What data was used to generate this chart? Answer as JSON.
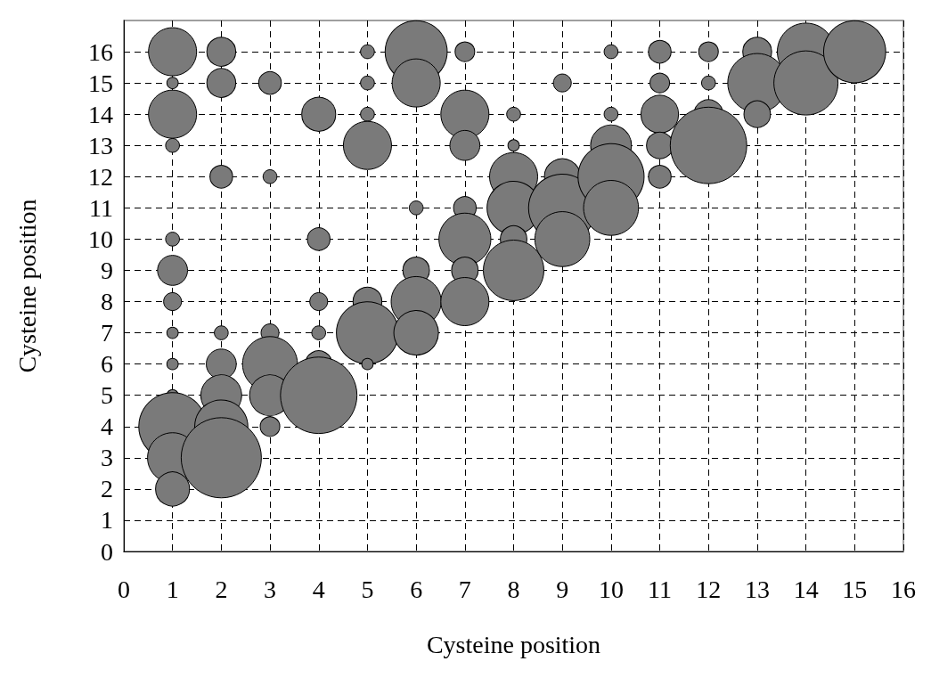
{
  "chart_data": {
    "type": "bubble",
    "xlabel": "Cysteine position",
    "ylabel": "Cysteine position",
    "xlim": [
      0,
      16
    ],
    "xticks": [
      0,
      1,
      2,
      3,
      4,
      5,
      6,
      7,
      8,
      9,
      10,
      11,
      12,
      13,
      14,
      15,
      16
    ],
    "ylim": [
      0,
      17
    ],
    "yticks": [
      0,
      1,
      2,
      3,
      4,
      5,
      6,
      7,
      8,
      9,
      10,
      11,
      12,
      13,
      14,
      15,
      16
    ],
    "grid": true,
    "line_style": "dashed",
    "series": [
      {
        "color": "#7a7a7a",
        "x": [
          1,
          1,
          1,
          1,
          1,
          1,
          1,
          1,
          1,
          1,
          1,
          1,
          1,
          2,
          2,
          2,
          2,
          2,
          2,
          2,
          2,
          3,
          3,
          3,
          3,
          3,
          3,
          4,
          4,
          4,
          4,
          4,
          4,
          5,
          5,
          5,
          5,
          5,
          5,
          5,
          6,
          6,
          6,
          6,
          6,
          6,
          7,
          7,
          7,
          7,
          7,
          7,
          7,
          8,
          8,
          8,
          8,
          8,
          8,
          9,
          9,
          9,
          9,
          10,
          10,
          10,
          10,
          10,
          11,
          11,
          11,
          11,
          11,
          12,
          12,
          12,
          12,
          13,
          13,
          13,
          14,
          14,
          15
        ],
        "values": [
          16,
          15,
          14,
          13,
          10,
          9,
          8,
          7,
          6,
          5,
          4,
          3,
          2,
          16,
          15,
          12,
          7,
          6,
          5,
          4,
          3,
          15,
          12,
          7,
          6,
          5,
          4,
          14,
          10,
          8,
          7,
          6,
          5,
          16,
          15,
          14,
          13,
          8,
          7,
          6,
          16,
          15,
          11,
          9,
          8,
          7,
          16,
          14,
          13,
          11,
          10,
          9,
          8,
          14,
          13,
          12,
          11,
          10,
          9,
          15,
          12,
          11,
          10,
          16,
          14,
          13,
          12,
          11,
          16,
          15,
          14,
          13,
          12,
          16,
          15,
          14,
          13,
          16,
          15,
          14,
          16,
          15,
          16
        ],
        "sizes": [
          0.36,
          0.02,
          0.36,
          0.03,
          0.03,
          0.14,
          0.05,
          0.02,
          0.02,
          0.02,
          0.71,
          0.39,
          0.18,
          0.13,
          0.13,
          0.08,
          0.03,
          0.14,
          0.26,
          0.44,
          1,
          0.08,
          0.03,
          0.05,
          0.47,
          0.26,
          0.06,
          0.18,
          0.08,
          0.05,
          0.03,
          0.11,
          0.91,
          0.03,
          0.03,
          0.03,
          0.36,
          0.13,
          0.6,
          0.02,
          0.6,
          0.36,
          0.03,
          0.11,
          0.39,
          0.31,
          0.06,
          0.36,
          0.14,
          0.08,
          0.42,
          0.11,
          0.36,
          0.03,
          0.02,
          0.36,
          0.44,
          0.11,
          0.57,
          0.05,
          0.2,
          0.71,
          0.47,
          0.03,
          0.03,
          0.26,
          0.68,
          0.47,
          0.08,
          0.06,
          0.22,
          0.11,
          0.08,
          0.06,
          0.03,
          0.13,
          0.91,
          0.13,
          0.54,
          0.11,
          0.51,
          0.64,
          0.6
        ]
      }
    ]
  }
}
